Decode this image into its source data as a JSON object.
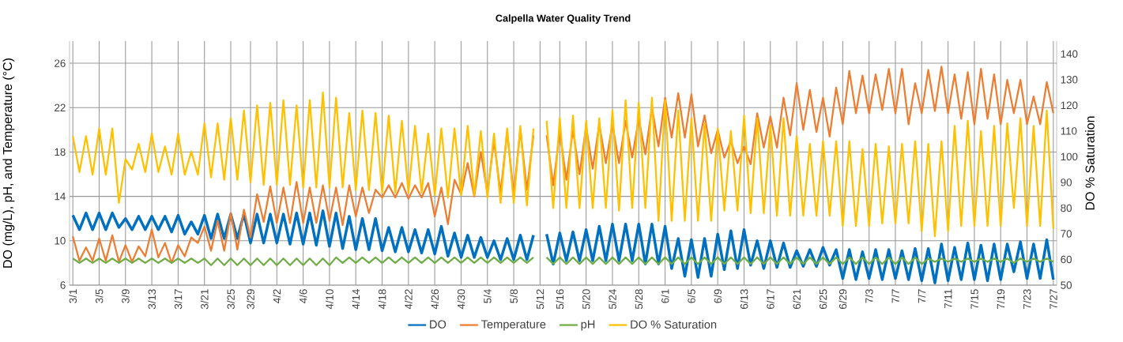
{
  "chart_data": {
    "type": "line",
    "title": "Calpella Water Quality Trend",
    "ylabel": "DO (mg/L), pH, and Temperature (°C)",
    "y2label": "DO % Saturation",
    "categories": [
      "3/1",
      null,
      null,
      null,
      "3/5",
      null,
      null,
      null,
      "3/9",
      null,
      null,
      null,
      "3/13",
      null,
      null,
      null,
      "3/17",
      null,
      null,
      null,
      "3/21",
      null,
      null,
      null,
      "3/25",
      null,
      null,
      "3/29",
      null,
      null,
      null,
      "4/2",
      null,
      null,
      null,
      "4/6",
      null,
      null,
      null,
      "4/10",
      null,
      null,
      null,
      "4/14",
      null,
      null,
      null,
      "4/18",
      null,
      null,
      null,
      "4/22",
      null,
      null,
      null,
      "4/26",
      null,
      null,
      null,
      "4/30",
      null,
      null,
      null,
      "5/4",
      null,
      null,
      null,
      "5/8",
      null,
      null,
      null,
      "5/12",
      null,
      null,
      "5/16",
      null,
      null,
      null,
      "5/20",
      null,
      null,
      null,
      "5/24",
      null,
      null,
      null,
      "5/28",
      null,
      null,
      null,
      "6/1",
      null,
      null,
      null,
      "6/5",
      null,
      null,
      null,
      "6/9",
      null,
      null,
      null,
      "6/13",
      null,
      null,
      null,
      "6/17",
      null,
      null,
      null,
      "6/21",
      null,
      null,
      null,
      "6/25",
      null,
      null,
      "6/29",
      null,
      null,
      null,
      "7/3",
      null,
      null,
      null,
      "7/7",
      null,
      null,
      null,
      "7/7",
      null,
      null,
      null,
      "7/11",
      null,
      null,
      null,
      "7/15",
      null,
      null,
      null,
      "7/19",
      null,
      null,
      null,
      "7/23",
      null,
      null,
      null,
      "7/27"
    ],
    "series": [
      {
        "name": "DO",
        "color": "#0070c0",
        "values": [
          12.3,
          11.0,
          12.5,
          11.0,
          12.5,
          11.0,
          12.5,
          11.2,
          12.0,
          11.0,
          12.2,
          11.0,
          12.2,
          11.0,
          12.2,
          10.8,
          12.3,
          10.6,
          11.7,
          10.6,
          12.3,
          10.2,
          12.4,
          10.2,
          12.4,
          10.2,
          12.4,
          9.8,
          12.4,
          9.8,
          12.4,
          9.8,
          12.4,
          9.7,
          12.5,
          9.7,
          12.5,
          9.6,
          12.7,
          9.5,
          12.5,
          9.3,
          12.2,
          9.2,
          12.0,
          9.2,
          12.0,
          9.1,
          11.2,
          9.0,
          11.2,
          9.0,
          11.0,
          8.9,
          11.0,
          8.8,
          11.3,
          8.6,
          10.7,
          8.5,
          10.5,
          8.5,
          10.3,
          8.5,
          10.0,
          8.3,
          10.2,
          8.3,
          10.5,
          8.3,
          10.5,
          null,
          10.6,
          7.9,
          10.7,
          8.2,
          10.8,
          8.2,
          11.0,
          8.2,
          11.3,
          8.2,
          11.5,
          8.2,
          11.5,
          8.2,
          11.5,
          7.9,
          11.5,
          7.9,
          11.3,
          7.5,
          10.2,
          6.8,
          10.1,
          6.7,
          10.2,
          6.8,
          10.6,
          7.4,
          10.9,
          7.5,
          11.0,
          7.8,
          10.0,
          7.5,
          10.0,
          7.6,
          9.8,
          7.6,
          9.1,
          7.7,
          9.2,
          7.7,
          9.4,
          7.8,
          9.2,
          6.6,
          9.2,
          6.5,
          9.0,
          6.6,
          9.2,
          6.5,
          9.2,
          6.6,
          9.1,
          6.5,
          9.3,
          6.4,
          9.3,
          6.2,
          9.7,
          6.4,
          9.4,
          6.5,
          9.8,
          6.5,
          9.6,
          6.4,
          9.7,
          6.5,
          9.7,
          7.2,
          9.9,
          6.6,
          9.7,
          6.6,
          10.1,
          6.5
        ]
      },
      {
        "name": "Temperature",
        "color": "#ed7d31",
        "values": [
          10.4,
          8.2,
          9.4,
          8.2,
          10.2,
          8.2,
          10.5,
          8.1,
          9.6,
          8.1,
          9.5,
          8.6,
          11.0,
          8.5,
          9.8,
          8.0,
          9.6,
          8.6,
          10.3,
          9.8,
          11.3,
          9.1,
          11.8,
          9.1,
          12.5,
          9.2,
          12.8,
          10.3,
          14.2,
          11.7,
          14.9,
          11.6,
          14.8,
          11.6,
          15.3,
          11.6,
          14.8,
          11.6,
          15.0,
          11.8,
          14.8,
          11.4,
          15.0,
          12.2,
          14.8,
          12.5,
          14.6,
          13.9,
          15.0,
          13.9,
          15.2,
          13.8,
          15.0,
          13.9,
          15.2,
          12.2,
          14.8,
          11.5,
          15.5,
          14.2,
          17.0,
          14.0,
          18.0,
          14.3,
          19.0,
          14.3,
          19.8,
          14.2,
          20.0,
          14.6,
          19.5,
          null,
          19.5,
          15.0,
          19.8,
          15.5,
          20.0,
          16.0,
          20.3,
          16.5,
          20.5,
          17.0,
          20.5,
          17.0,
          20.8,
          17.5,
          21.0,
          17.8,
          22.0,
          18.5,
          22.9,
          19.3,
          23.3,
          19.3,
          23.2,
          18.5,
          21.3,
          17.9,
          20.0,
          17.5,
          19.0,
          17.0,
          18.5,
          16.9,
          21.5,
          18.4,
          21.2,
          18.4,
          22.9,
          19.5,
          24.2,
          20.0,
          23.6,
          19.8,
          22.9,
          19.4,
          23.8,
          20.5,
          25.3,
          21.5,
          24.9,
          21.5,
          25.0,
          21.8,
          25.5,
          21.5,
          25.5,
          20.5,
          24.2,
          21.5,
          25.4,
          21.7,
          25.7,
          21.5,
          25.0,
          21.0,
          25.2,
          20.5,
          25.5,
          21.0,
          25.0,
          20.5,
          24.5,
          21.5,
          24.5,
          20.5,
          23.0,
          20.5,
          24.3,
          21.5
        ]
      },
      {
        "name": "pH",
        "color": "#70ad47",
        "values": [
          8.4,
          8.0,
          8.4,
          8.0,
          8.4,
          8.0,
          8.4,
          8.0,
          8.4,
          8.0,
          8.4,
          8.0,
          8.4,
          8.0,
          8.4,
          8.0,
          8.4,
          8.0,
          8.4,
          8.0,
          8.4,
          7.8,
          8.4,
          7.8,
          8.4,
          7.8,
          8.4,
          7.8,
          8.4,
          7.8,
          8.4,
          7.8,
          8.4,
          7.8,
          8.4,
          7.8,
          8.4,
          7.8,
          8.4,
          7.8,
          8.5,
          8.0,
          8.5,
          8.0,
          8.5,
          8.0,
          8.5,
          8.0,
          8.5,
          8.0,
          8.5,
          8.0,
          8.5,
          8.0,
          8.5,
          8.0,
          8.5,
          8.0,
          8.5,
          8.0,
          8.5,
          8.0,
          8.5,
          8.0,
          8.5,
          8.0,
          8.5,
          8.0,
          8.5,
          8.0,
          8.5,
          null,
          8.5,
          7.9,
          8.5,
          7.9,
          8.5,
          7.9,
          8.5,
          7.9,
          8.5,
          7.9,
          8.5,
          7.9,
          8.5,
          7.9,
          8.5,
          7.9,
          8.5,
          7.9,
          8.5,
          7.9,
          8.5,
          7.9,
          8.5,
          7.9,
          8.5,
          7.9,
          8.5,
          7.9,
          8.5,
          7.9,
          8.5,
          7.9,
          8.5,
          7.9,
          8.5,
          7.9,
          8.5,
          7.9,
          8.5,
          7.9,
          8.5,
          7.9,
          8.5,
          7.9,
          8.5,
          7.9,
          8.5,
          7.9,
          8.5,
          7.9,
          8.5,
          7.9,
          8.5,
          7.9,
          8.5,
          7.9,
          8.5,
          7.9,
          8.4,
          8.1,
          8.4,
          8.1,
          8.4,
          8.1,
          8.4,
          8.1,
          8.4,
          8.1,
          8.4,
          8.1,
          8.4,
          8.0,
          8.4,
          8.1,
          8.4,
          8.1,
          8.4,
          8.1
        ]
      },
      {
        "name": "DO % Saturation",
        "color": "#ffc000",
        "axis": "y2",
        "values": [
          108,
          94,
          108,
          93,
          111,
          93,
          111,
          82,
          99,
          95,
          105,
          94,
          109,
          94,
          104,
          93,
          109,
          93,
          102,
          93,
          113,
          92,
          113,
          91,
          115,
          91,
          118,
          90,
          120,
          89,
          121,
          89,
          122,
          89,
          120,
          88,
          122,
          88,
          125,
          88,
          123,
          88,
          117,
          87,
          118,
          87,
          117,
          86,
          116,
          86,
          114,
          86,
          112,
          86,
          109,
          85,
          111,
          84,
          111,
          85,
          112,
          85,
          110,
          84,
          109,
          82,
          111,
          82,
          112,
          81,
          111,
          null,
          114,
          80,
          115,
          80,
          116,
          80,
          114,
          80,
          115,
          80,
          118,
          79,
          122,
          80,
          121,
          80,
          123,
          75,
          122,
          75,
          118,
          75,
          115,
          75,
          113,
          75,
          111,
          79,
          110,
          79,
          116,
          78,
          115,
          78,
          112,
          77,
          115,
          77,
          108,
          77,
          105,
          77,
          106,
          77,
          106,
          73,
          106,
          73,
          103,
          73,
          105,
          74,
          104,
          74,
          105,
          74,
          106,
          71,
          105,
          69,
          106,
          71,
          112,
          73,
          114,
          73,
          110,
          73,
          112,
          73,
          113,
          80,
          115,
          73,
          112,
          73,
          118,
          72
        ]
      }
    ],
    "ylim": [
      6,
      28
    ],
    "yticks": [
      6,
      10,
      14,
      18,
      22,
      26
    ],
    "y2lim": [
      50,
      145
    ],
    "y2ticks": [
      50,
      60,
      70,
      80,
      90,
      100,
      110,
      120,
      130,
      140
    ],
    "grid": true,
    "legend": "bottom"
  }
}
